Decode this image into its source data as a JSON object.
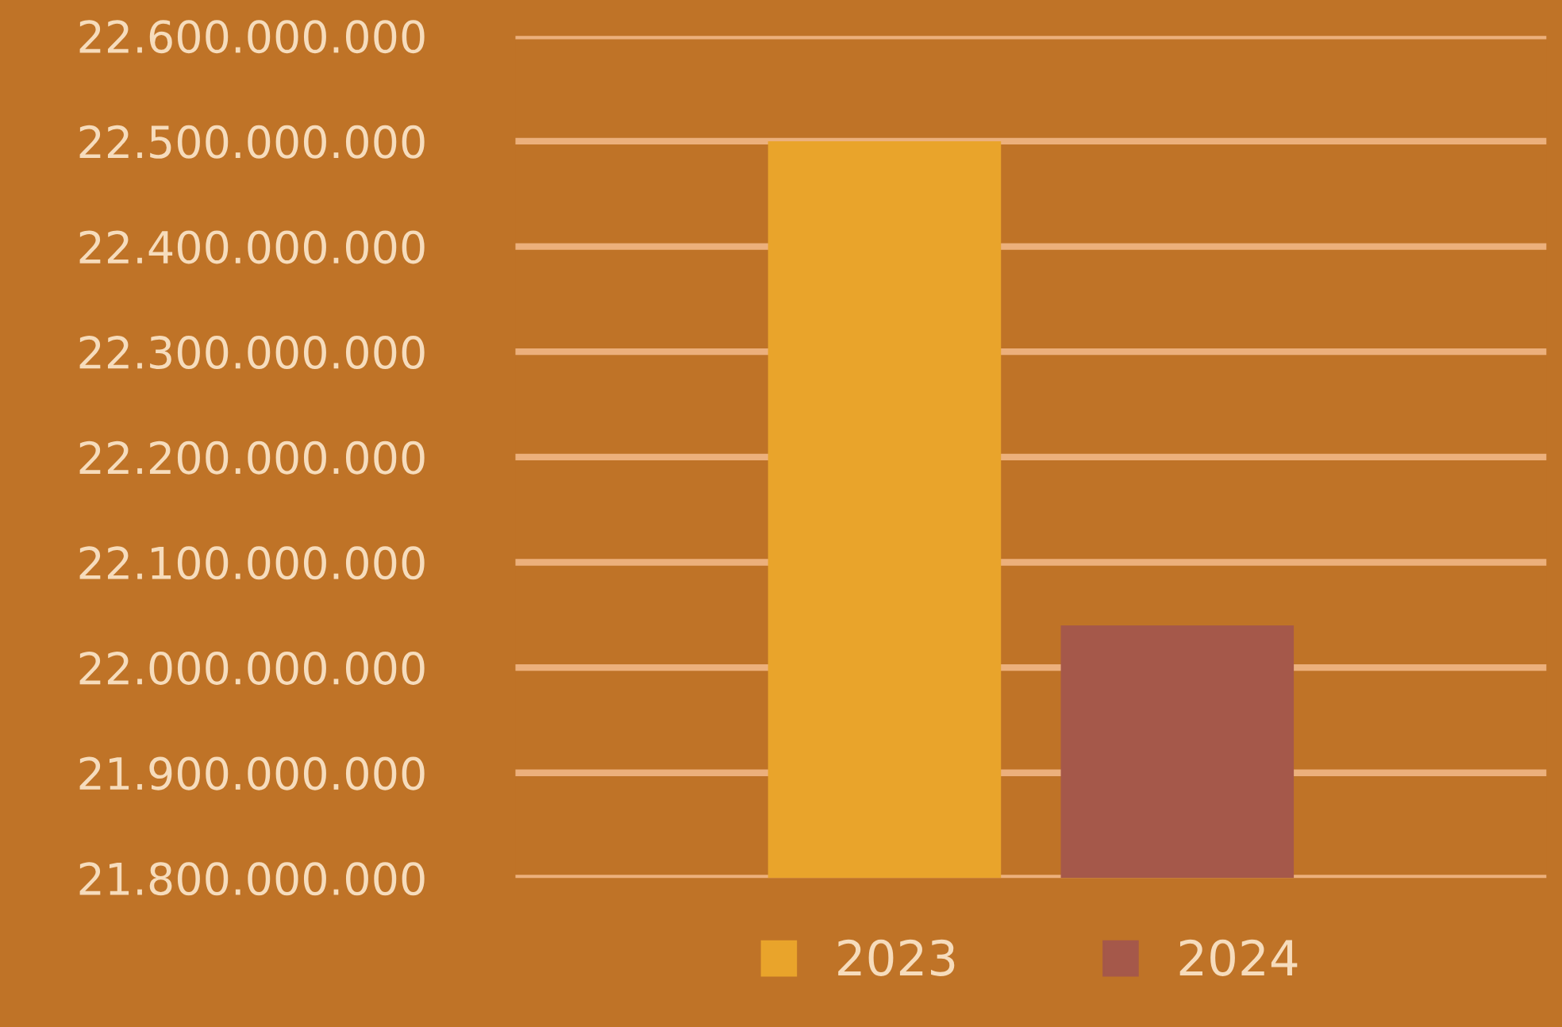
{
  "chart_data": {
    "type": "bar",
    "categories": [
      null
    ],
    "series": [
      {
        "name": "2023",
        "color": "#e9a42b",
        "values": [
          22500000000
        ]
      },
      {
        "name": "2024",
        "color": "#a5584a",
        "values": [
          22040000000
        ]
      }
    ],
    "ylim": [
      21800000000,
      22600000000
    ],
    "yticks": [
      {
        "value": 21800000000,
        "label": "21.800.000.000"
      },
      {
        "value": 21900000000,
        "label": "21.900.000.000"
      },
      {
        "value": 22000000000,
        "label": "22.000.000.000"
      },
      {
        "value": 22100000000,
        "label": "22.100.000.000"
      },
      {
        "value": 22200000000,
        "label": "22.200.000.000"
      },
      {
        "value": 22300000000,
        "label": "22.300.000.000"
      },
      {
        "value": 22400000000,
        "label": "22.400.000.000"
      },
      {
        "value": 22500000000,
        "label": "22.500.000.000"
      },
      {
        "value": 22600000000,
        "label": "22.600.000.000"
      }
    ],
    "grid": "y",
    "legend": "bottom"
  }
}
